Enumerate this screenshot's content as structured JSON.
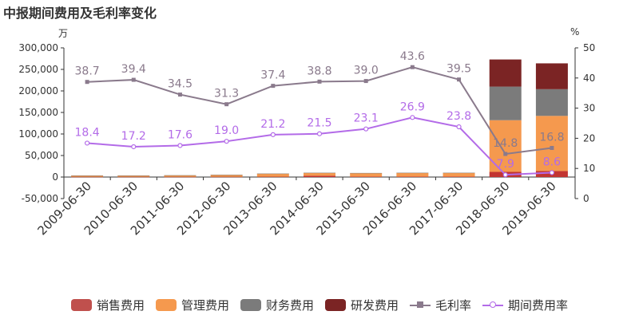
{
  "title": "中报期间费用及毛利率变化",
  "left_unit": "万",
  "right_unit": "%",
  "colors": {
    "sales": "#c23531",
    "admin": "#f5994e",
    "finance": "#7b7b7b",
    "rd": "#7b2424",
    "gross": "#8a7a8c",
    "period": "#b36be8"
  },
  "chart_data": {
    "type": "bar",
    "categories": [
      "2009-06-30",
      "2010-06-30",
      "2011-06-30",
      "2012-06-30",
      "2013-06-30",
      "2014-06-30",
      "2015-06-30",
      "2016-06-30",
      "2017-06-30",
      "2018-06-30",
      "2019-06-30"
    ],
    "series": [
      {
        "name": "销售费用",
        "type": "bar",
        "axis": "left",
        "values": [
          500,
          500,
          500,
          600,
          800,
          3000,
          1000,
          1000,
          1000,
          12000,
          14000
        ]
      },
      {
        "name": "管理费用",
        "type": "bar",
        "axis": "left",
        "values": [
          3000,
          3000,
          3500,
          4500,
          7000,
          6500,
          8000,
          8500,
          8500,
          120000,
          128000
        ]
      },
      {
        "name": "财务费用",
        "type": "bar",
        "axis": "left",
        "values": [
          200,
          200,
          200,
          200,
          300,
          500,
          500,
          500,
          500,
          78000,
          62000
        ]
      },
      {
        "name": "研发费用",
        "type": "bar",
        "axis": "left",
        "values": [
          0,
          0,
          0,
          0,
          0,
          0,
          0,
          0,
          0,
          63000,
          60000
        ]
      },
      {
        "name": "毛利率",
        "type": "line",
        "axis": "right",
        "values": [
          38.7,
          39.4,
          34.5,
          31.3,
          37.4,
          38.8,
          39.0,
          43.6,
          39.5,
          14.8,
          16.8
        ]
      },
      {
        "name": "期间费用率",
        "type": "line",
        "axis": "right",
        "values": [
          18.4,
          17.2,
          17.6,
          19.0,
          21.2,
          21.5,
          23.1,
          26.9,
          23.8,
          7.9,
          8.6
        ]
      }
    ],
    "y_left": {
      "ticks": [
        "-50,000",
        "0",
        "50,000",
        "100,000",
        "150,000",
        "200,000",
        "250,000",
        "300,000"
      ],
      "ylim": [
        -50000,
        300000
      ]
    },
    "y_right": {
      "ticks": [
        "0",
        "10",
        "20",
        "30",
        "40",
        "50"
      ],
      "ylim": [
        0,
        50
      ]
    },
    "grid": false,
    "legend_position": "bottom"
  }
}
